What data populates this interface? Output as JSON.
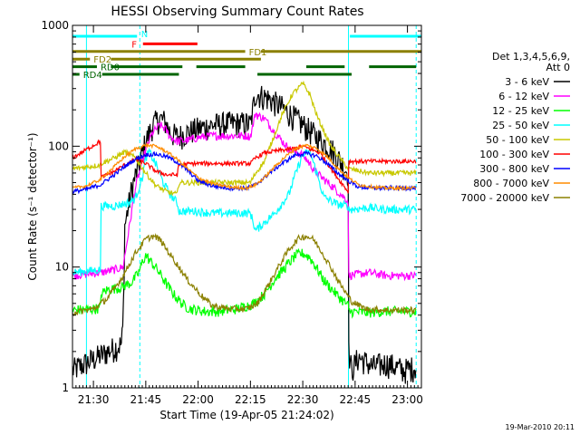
{
  "chart_data": {
    "type": "line",
    "title": "HESSI Observing Summary Count Rates",
    "xlabel": "Start Time (19-Apr-05 21:24:02)",
    "ylabel": "Count Rate (s⁻¹ detector⁻¹)",
    "footer": "19-Mar-2010 20:11",
    "x_unit": "minutes after 21:24:02",
    "xlim": [
      0,
      100
    ],
    "ylim": [
      1,
      1000
    ],
    "y_scale": "log",
    "grid": false,
    "legend_placement": "right",
    "legend_header": [
      "Det 1,3,4,5,6,9,",
      "Att 0"
    ],
    "x_ticks": [
      {
        "label": "21:30",
        "x": 6
      },
      {
        "label": "21:45",
        "x": 21
      },
      {
        "label": "22:00",
        "x": 36
      },
      {
        "label": "22:15",
        "x": 51
      },
      {
        "label": "22:30",
        "x": 66
      },
      {
        "label": "22:45",
        "x": 81
      },
      {
        "label": "23:00",
        "x": 96
      }
    ],
    "y_ticks": [
      {
        "label": "1",
        "y": 1
      },
      {
        "label": "10",
        "y": 10
      },
      {
        "label": "100",
        "y": 100
      },
      {
        "label": "1000",
        "y": 1000
      }
    ],
    "night_intervals": [
      [
        0,
        0
      ],
      [
        40,
        0
      ]
    ],
    "night_markers": [
      {
        "x": 4,
        "style": "solid"
      },
      {
        "x": 19.3,
        "style": "dashed"
      },
      {
        "x": 79.1,
        "style": "solid"
      },
      {
        "x": 98.5,
        "style": "dashed"
      }
    ],
    "flag_bars": [
      {
        "label": "N",
        "color": "#00ffff",
        "level": 1,
        "segments": [
          [
            0,
            18.5
          ],
          [
            79.5,
            100
          ]
        ]
      },
      {
        "label": "F",
        "color": "#ff0000",
        "level": 2,
        "segments": [
          [
            20.2,
            35.8
          ]
        ]
      },
      {
        "label": "FD1",
        "color": "#8b8000",
        "level": 3,
        "segments": [
          [
            0,
            49.5
          ],
          [
            54,
            100
          ]
        ]
      },
      {
        "label": "FD2",
        "color": "#8b8000",
        "level": 4,
        "segments": [
          [
            0,
            5
          ],
          [
            11,
            54
          ]
        ]
      },
      {
        "label": "RD0",
        "color": "#006400",
        "level": 5,
        "segments": [
          [
            0,
            7
          ],
          [
            11,
            31.5
          ],
          [
            35.5,
            49.5
          ],
          [
            67,
            78
          ],
          [
            85,
            98.5
          ]
        ]
      },
      {
        "label": "RD4",
        "color": "#006400",
        "level": 6,
        "segments": [
          [
            0,
            2
          ],
          [
            8.5,
            30.5
          ],
          [
            53,
            80
          ]
        ]
      }
    ],
    "series": [
      {
        "name": "3 - 6 keV",
        "color": "#000000",
        "x": [
          0,
          14,
          14.5,
          15,
          17,
          19,
          21,
          23,
          25,
          26.5,
          28,
          30,
          33,
          36,
          40,
          45,
          50,
          51,
          52.5,
          53,
          56,
          60,
          65,
          70,
          75,
          79,
          79.2,
          80,
          82,
          86,
          90,
          95,
          98.5
        ],
        "y": [
          1.4,
          2.3,
          3.3,
          22,
          45,
          70,
          110,
          150,
          170,
          160,
          130,
          120,
          130,
          140,
          150,
          155,
          155,
          150,
          280,
          270,
          250,
          210,
          160,
          120,
          90,
          60,
          2,
          1.4,
          1.8,
          1.5,
          1.6,
          1.4,
          1.5
        ],
        "noise": 0.25
      },
      {
        "name": "6 - 12 keV",
        "color": "#ff00ff",
        "x": [
          0,
          8,
          8.2,
          12,
          14.5,
          18,
          21,
          23,
          25,
          26.5,
          28,
          30,
          33,
          36,
          40,
          45,
          50,
          51,
          52.5,
          53,
          55,
          58,
          62,
          66,
          70,
          75,
          79,
          79.2,
          85,
          90,
          98.5
        ],
        "y": [
          8.5,
          9,
          9,
          9.5,
          10,
          45,
          95,
          130,
          150,
          140,
          120,
          110,
          112,
          118,
          122,
          122,
          122,
          120,
          190,
          180,
          170,
          130,
          95,
          85,
          60,
          45,
          35,
          8.5,
          9,
          8.5,
          8.5
        ],
        "noise": 0.08
      },
      {
        "name": "12 - 25 keV",
        "color": "#00ff00",
        "x": [
          0,
          6,
          8,
          8.2,
          10,
          14,
          17,
          19,
          20,
          21,
          22,
          24,
          26,
          28,
          30,
          32,
          34,
          36,
          38,
          42,
          47,
          52,
          55,
          58,
          61,
          64,
          66,
          68,
          70,
          72,
          76,
          79,
          79.2,
          84,
          90,
          98.5
        ],
        "y": [
          4.4,
          4.5,
          4.6,
          6,
          6.5,
          6.8,
          7.5,
          9,
          11,
          12.5,
          11.5,
          9.8,
          8,
          6.5,
          5.5,
          4.8,
          4.5,
          4.4,
          4.3,
          4.3,
          4.5,
          5,
          6,
          8,
          10,
          12.5,
          13,
          12,
          9.8,
          7.8,
          5.8,
          4.8,
          4.3,
          4.2,
          4.3,
          4.3
        ],
        "noise": 0.1
      },
      {
        "name": "25 - 50 keV",
        "color": "#00ffff",
        "x": [
          0,
          8,
          8.2,
          12,
          16,
          18,
          20,
          21,
          22,
          24,
          26,
          28,
          30,
          30.5,
          35,
          40,
          50,
          51,
          52.5,
          54,
          58,
          62,
          64,
          66,
          68,
          70,
          72,
          76,
          79,
          79.2,
          85,
          90,
          98.5
        ],
        "y": [
          9,
          9.5,
          32,
          32,
          34,
          37,
          55,
          80,
          90,
          70,
          50,
          40,
          34,
          29,
          29,
          28,
          28,
          28,
          20,
          22,
          28,
          40,
          60,
          85,
          90,
          60,
          38,
          33,
          32,
          30,
          31,
          30,
          30
        ],
        "noise": 0.08
      },
      {
        "name": "50 - 100 keV",
        "color": "#c8c800",
        "x": [
          0,
          8,
          8.2,
          12,
          15,
          18,
          21,
          24,
          27,
          30,
          30.5,
          35,
          40,
          45,
          50,
          51,
          52.5,
          55,
          60,
          63,
          66,
          68,
          70,
          74,
          79,
          79.2,
          85,
          90,
          98.5
        ],
        "y": [
          65,
          70,
          72,
          80,
          90,
          80,
          60,
          47,
          42,
          40,
          50,
          50,
          50,
          50,
          50,
          50,
          60,
          75,
          180,
          270,
          330,
          270,
          180,
          100,
          65,
          65,
          60,
          60,
          60
        ],
        "noise": 0.05
      },
      {
        "name": "100 - 300 keV",
        "color": "#ff0000",
        "x": [
          0,
          8,
          8.2,
          12,
          15,
          18,
          21,
          24,
          27,
          30,
          30.5,
          35,
          40,
          45,
          50,
          51,
          52.5,
          55,
          59,
          63,
          66,
          68,
          71,
          75,
          79,
          79.2,
          85,
          90,
          98.5
        ],
        "y": [
          80,
          110,
          55,
          62,
          70,
          78,
          72,
          62,
          58,
          58,
          70,
          72,
          72,
          72,
          72,
          72,
          80,
          88,
          92,
          95,
          100,
          95,
          88,
          60,
          42,
          75,
          75,
          75,
          75
        ],
        "noise": 0.04
      },
      {
        "name": "300 - 800 keV",
        "color": "#0000ff",
        "x": [
          0,
          4,
          8,
          12,
          15,
          18,
          21,
          24,
          27,
          30,
          33,
          36,
          40,
          45,
          50,
          52.5,
          55,
          58,
          61,
          64,
          67,
          70,
          73,
          76,
          79,
          82,
          86,
          90,
          98.5
        ],
        "y": [
          42,
          44,
          48,
          58,
          68,
          78,
          85,
          86,
          82,
          74,
          63,
          52,
          47,
          45,
          45,
          48,
          55,
          65,
          75,
          85,
          87,
          83,
          72,
          60,
          52,
          46,
          45,
          45,
          45
        ],
        "noise": 0.04
      },
      {
        "name": "800 - 7000 keV",
        "color": "#ff8c00",
        "x": [
          0,
          4,
          8,
          12,
          15,
          18,
          21,
          24,
          27,
          30,
          33,
          36,
          40,
          45,
          50,
          52.5,
          55,
          58,
          61,
          64,
          67,
          70,
          73,
          76,
          79,
          82,
          86,
          90,
          98.5
        ],
        "y": [
          45,
          47,
          53,
          68,
          82,
          95,
          102,
          100,
          90,
          78,
          65,
          55,
          49,
          46,
          45,
          48,
          55,
          68,
          82,
          96,
          102,
          96,
          82,
          66,
          55,
          48,
          46,
          45,
          45
        ],
        "noise": 0.03
      },
      {
        "name": "7000 - 20000 keV",
        "color": "#8b8000",
        "x": [
          0,
          6,
          10,
          14,
          18,
          21,
          23,
          25,
          27,
          30,
          33,
          37,
          40,
          45,
          50,
          53,
          56,
          59,
          62,
          65,
          67,
          69,
          71,
          74,
          77,
          80,
          84,
          90,
          98.5
        ],
        "y": [
          4.2,
          4.5,
          5.5,
          8,
          13,
          17,
          18,
          17,
          14,
          10.5,
          7.8,
          5.8,
          4.8,
          4.5,
          4.5,
          5,
          7,
          10,
          14,
          17.5,
          18,
          17,
          14,
          10,
          7,
          5.2,
          4.5,
          4.4,
          4.4
        ],
        "noise": 0.06
      }
    ]
  }
}
